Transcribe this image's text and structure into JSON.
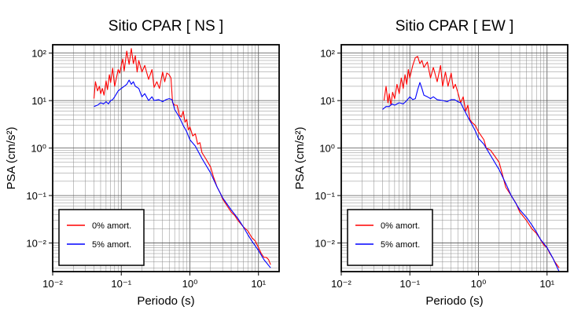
{
  "chart_data": [
    {
      "type": "line",
      "title": "Sitio CPAR [ NS ]",
      "xlabel": "Periodo (s)",
      "ylabel": "PSA (cm/s²)",
      "xscale": "log",
      "yscale": "log",
      "xlim": [
        0.01,
        20
      ],
      "ylim": [
        0.0025,
        150
      ],
      "grid": true,
      "legend_position": "bottom-left",
      "x_ticks": [
        "10⁻²",
        "10⁻¹",
        "10⁰",
        "10¹"
      ],
      "y_ticks": [
        "10⁻²",
        "10⁻¹",
        "10⁰",
        "10¹",
        "10²"
      ],
      "series": [
        {
          "name": "0% amort.",
          "color": "#ff0000",
          "x": [
            0.04,
            0.042,
            0.045,
            0.048,
            0.05,
            0.053,
            0.056,
            0.06,
            0.063,
            0.067,
            0.07,
            0.075,
            0.08,
            0.085,
            0.09,
            0.095,
            0.1,
            0.105,
            0.11,
            0.12,
            0.13,
            0.14,
            0.15,
            0.16,
            0.17,
            0.18,
            0.2,
            0.22,
            0.25,
            0.28,
            0.3,
            0.33,
            0.36,
            0.4,
            0.43,
            0.46,
            0.5,
            0.53,
            0.56,
            0.6,
            0.65,
            0.7,
            0.75,
            0.8,
            0.85,
            0.9,
            0.95,
            1.0,
            1.1,
            1.2,
            1.3,
            1.4,
            1.5,
            1.7,
            2.0,
            2.2,
            2.5,
            2.8,
            3.0,
            3.5,
            4.0,
            4.5,
            5.0,
            6.0,
            7.0,
            8.0,
            9.0,
            10.0,
            11.0,
            12.0,
            13.0,
            14.0,
            15.0
          ],
          "y": [
            11,
            25,
            16,
            20,
            14,
            18,
            13,
            26,
            17,
            35,
            24,
            48,
            20,
            30,
            45,
            38,
            55,
            75,
            42,
            110,
            58,
            125,
            60,
            88,
            40,
            70,
            40,
            55,
            28,
            45,
            19,
            25,
            18,
            40,
            25,
            38,
            35,
            30,
            9,
            8,
            8,
            5,
            4.5,
            6,
            3.5,
            4,
            2.4,
            2.8,
            1.8,
            2.0,
            1.2,
            1.3,
            0.8,
            0.6,
            0.4,
            0.25,
            0.15,
            0.11,
            0.085,
            0.06,
            0.045,
            0.038,
            0.03,
            0.022,
            0.018,
            0.013,
            0.011,
            0.008,
            0.006,
            0.005,
            0.005,
            0.0045,
            0.0035
          ]
        },
        {
          "name": "5% amort.",
          "color": "#0000ff",
          "x": [
            0.04,
            0.045,
            0.05,
            0.055,
            0.06,
            0.065,
            0.07,
            0.075,
            0.08,
            0.09,
            0.1,
            0.11,
            0.12,
            0.13,
            0.14,
            0.15,
            0.16,
            0.18,
            0.2,
            0.22,
            0.25,
            0.28,
            0.3,
            0.35,
            0.4,
            0.45,
            0.5,
            0.55,
            0.6,
            0.7,
            0.8,
            0.9,
            1.0,
            1.2,
            1.5,
            2.0,
            2.5,
            3.0,
            4.0,
            5.0,
            6.0,
            7.0,
            8.0,
            10.0,
            12.0,
            15.0
          ],
          "y": [
            7.5,
            8,
            9,
            8.5,
            9.5,
            8.5,
            10,
            10.5,
            12,
            16,
            18,
            20,
            22,
            27,
            22,
            25,
            20,
            18,
            12,
            14,
            10,
            12,
            10,
            10.5,
            9.5,
            10.5,
            11,
            10.5,
            6.5,
            4.5,
            3.0,
            2.2,
            1.5,
            1.1,
            0.6,
            0.3,
            0.15,
            0.09,
            0.05,
            0.033,
            0.022,
            0.015,
            0.011,
            0.007,
            0.0045,
            0.003
          ]
        }
      ]
    },
    {
      "type": "line",
      "title": "Sitio CPAR [ EW ]",
      "xlabel": "Periodo (s)",
      "ylabel": "PSA (cm/s²)",
      "xscale": "log",
      "yscale": "log",
      "xlim": [
        0.01,
        20
      ],
      "ylim": [
        0.0025,
        150
      ],
      "grid": true,
      "legend_position": "bottom-left",
      "x_ticks": [
        "10⁻²",
        "10⁻¹",
        "10⁰",
        "10¹"
      ],
      "y_ticks": [
        "10⁻²",
        "10⁻¹",
        "10⁰",
        "10¹",
        "10²"
      ],
      "series": [
        {
          "name": "0% amort.",
          "color": "#ff0000",
          "x": [
            0.042,
            0.045,
            0.048,
            0.05,
            0.053,
            0.056,
            0.06,
            0.065,
            0.07,
            0.075,
            0.08,
            0.085,
            0.09,
            0.095,
            0.1,
            0.11,
            0.12,
            0.13,
            0.14,
            0.15,
            0.16,
            0.18,
            0.2,
            0.22,
            0.25,
            0.28,
            0.3,
            0.33,
            0.36,
            0.4,
            0.43,
            0.46,
            0.5,
            0.55,
            0.6,
            0.65,
            0.7,
            0.75,
            0.8,
            0.9,
            1.0,
            1.1,
            1.2,
            1.3,
            1.5,
            1.7,
            2.0,
            2.2,
            2.5,
            3.0,
            3.5,
            4.0,
            5.0,
            6.0,
            7.0,
            8.0,
            9.0,
            10.0,
            11.0,
            12.0,
            13.0,
            15.0
          ],
          "y": [
            10,
            20,
            9,
            14,
            8,
            15,
            11,
            22,
            14,
            30,
            18,
            35,
            22,
            45,
            30,
            55,
            80,
            85,
            60,
            70,
            50,
            65,
            30,
            50,
            25,
            55,
            20,
            40,
            20,
            38,
            18,
            22,
            15,
            9,
            12,
            6,
            8,
            4,
            3.5,
            3.0,
            2.2,
            1.8,
            1.5,
            1.0,
            0.9,
            0.7,
            0.5,
            0.3,
            0.15,
            0.1,
            0.07,
            0.045,
            0.03,
            0.02,
            0.016,
            0.012,
            0.009,
            0.008,
            0.006,
            0.005,
            0.004,
            0.003
          ]
        },
        {
          "name": "5% amort.",
          "color": "#0000ff",
          "x": [
            0.04,
            0.045,
            0.05,
            0.055,
            0.06,
            0.07,
            0.08,
            0.09,
            0.1,
            0.11,
            0.12,
            0.13,
            0.14,
            0.15,
            0.16,
            0.18,
            0.2,
            0.22,
            0.25,
            0.3,
            0.35,
            0.4,
            0.45,
            0.5,
            0.55,
            0.6,
            0.7,
            0.8,
            0.9,
            1.0,
            1.2,
            1.5,
            2.0,
            2.5,
            3.0,
            4.0,
            5.0,
            6.0,
            7.0,
            8.0,
            10.0,
            12.0,
            15.0
          ],
          "y": [
            6.5,
            7.5,
            7.5,
            8.5,
            8,
            9,
            8.5,
            10,
            12,
            10.5,
            11,
            17,
            24,
            18,
            13,
            12,
            11,
            12,
            10.5,
            10,
            9.5,
            10.5,
            10.5,
            9.5,
            9,
            7,
            4.5,
            3.2,
            2.3,
            1.6,
            1.2,
            0.7,
            0.35,
            0.18,
            0.1,
            0.05,
            0.035,
            0.024,
            0.017,
            0.012,
            0.008,
            0.005,
            0.0025
          ]
        }
      ]
    }
  ]
}
